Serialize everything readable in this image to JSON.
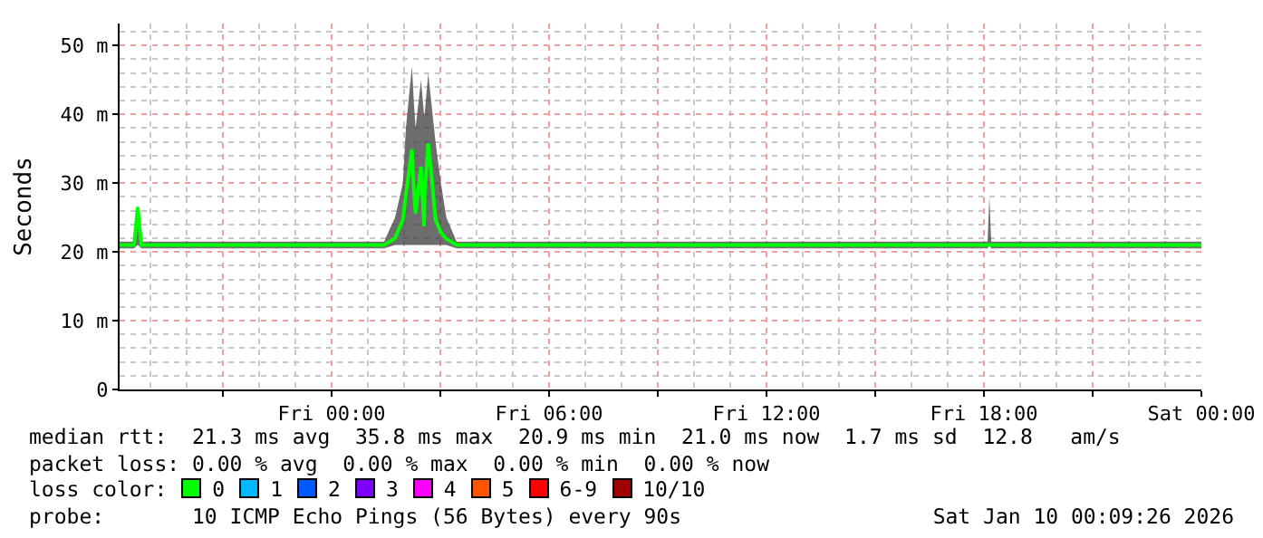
{
  "chart_data": {
    "type": "line",
    "ylabel": "Seconds",
    "xlim": [
      "2026-01-08T18:09",
      "2026-01-10T00:00"
    ],
    "xticks": [
      {
        "value": "2026-01-08T21:00",
        "label": null
      },
      {
        "value": "2026-01-09T00:00",
        "label": "Fri 00:00"
      },
      {
        "value": "2026-01-09T03:00",
        "label": null
      },
      {
        "value": "2026-01-09T06:00",
        "label": "Fri 06:00"
      },
      {
        "value": "2026-01-09T09:00",
        "label": null
      },
      {
        "value": "2026-01-09T12:00",
        "label": "Fri 12:00"
      },
      {
        "value": "2026-01-09T15:00",
        "label": null
      },
      {
        "value": "2026-01-09T18:00",
        "label": "Fri 18:00"
      },
      {
        "value": "2026-01-09T21:00",
        "label": null
      },
      {
        "value": "2026-01-10T00:00",
        "label": "Sat 00:00"
      }
    ],
    "ylim": [
      0,
      53.2
    ],
    "yticks": [
      0,
      {
        "value": 10,
        "label": "10 m"
      },
      {
        "value": 20,
        "label": "20 m"
      },
      {
        "value": 30,
        "label": "30 m"
      },
      {
        "value": 40,
        "label": "40 m"
      },
      {
        "value": 50,
        "label": "50 m"
      }
    ],
    "grid": true,
    "marker": "none",
    "line_style": "solid",
    "series": [
      {
        "color": "#00ff00",
        "x": [
          "2026-01-08T18:09",
          "2026-01-08T18:33",
          "2026-01-08T18:39",
          "2026-01-08T18:45",
          "2026-01-09T01:27",
          "2026-01-09T01:45",
          "2026-01-09T01:58",
          "2026-01-09T02:03",
          "2026-01-09T02:13",
          "2026-01-09T02:16",
          "2026-01-09T02:19",
          "2026-01-09T02:28",
          "2026-01-09T02:33",
          "2026-01-09T02:34",
          "2026-01-09T02:40",
          "2026-01-09T02:46",
          "2026-01-09T02:52",
          "2026-01-09T03:01",
          "2026-01-09T03:10",
          "2026-01-09T03:27",
          "2026-01-09T18:06",
          "2026-01-09T18:09",
          "2026-01-09T18:12",
          "2026-01-10T00:00"
        ],
        "values": [
          21,
          21,
          26.5,
          21,
          21,
          22,
          24.7,
          28.4,
          34.9,
          29.2,
          25.6,
          32.4,
          23.7,
          28.4,
          35.8,
          30.5,
          24.7,
          22.8,
          21.9,
          21,
          21,
          21,
          21,
          21
        ],
        "lower": [
          20.5,
          20.5,
          21,
          20.5,
          20.5,
          21,
          21,
          21,
          21,
          21,
          21,
          21,
          21,
          21,
          21,
          21,
          21,
          21,
          21,
          20.5,
          20.5,
          21,
          20.5,
          20.5
        ],
        "upper": [
          21.5,
          21.5,
          26.8,
          21.5,
          21.5,
          25,
          30,
          38,
          47,
          42,
          38,
          45,
          40,
          40,
          46,
          41,
          36,
          30,
          25,
          21.5,
          21.5,
          28,
          21.5,
          21.5
        ]
      }
    ],
    "annotations": [
      "median rtt:  21.3 ms avg  35.8 ms max  20.9 ms min  21.0 ms now  1.7 ms sd  12.8   am/s",
      "packet loss: 0.00 % avg  0.00 % max  0.00 % min  0.00 % now",
      "loss color:",
      "0",
      "1",
      "2",
      "3",
      "4",
      "5",
      "6-9",
      "10/10",
      "probe:       10 ICMP Echo Pings (56 Bytes) every 90s",
      "Sat Jan 10 00:09:26 2026"
    ]
  }
}
